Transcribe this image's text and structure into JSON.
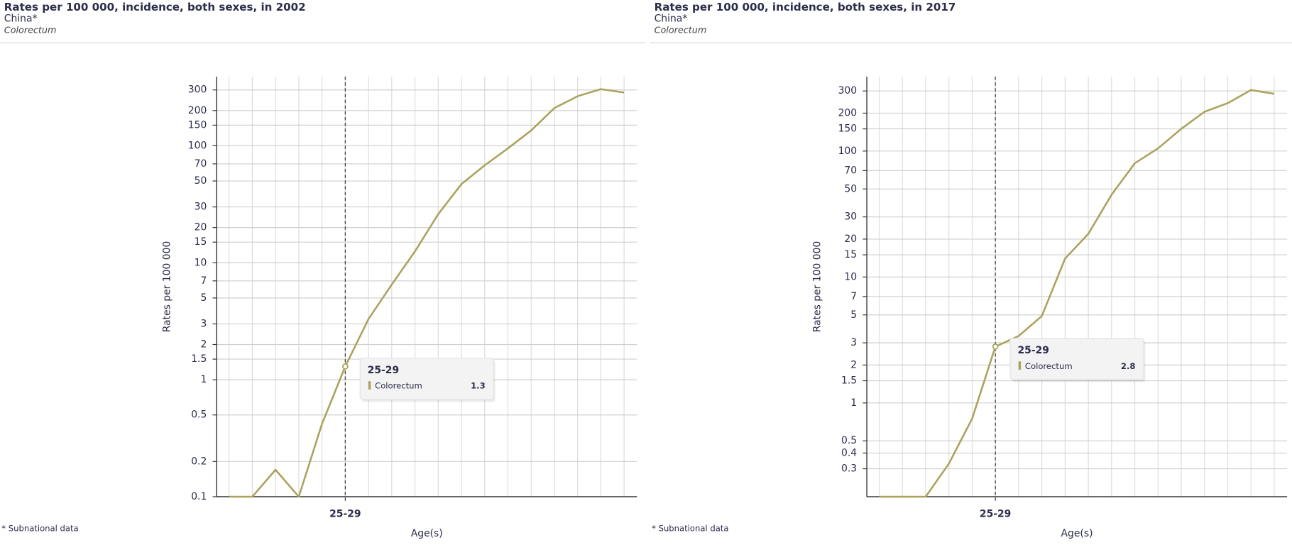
{
  "chart_data": [
    {
      "type": "line",
      "title": "Rates per 100 000, incidence, both sexes, in 2002",
      "subtitle": "China*",
      "cancer_site": "Colorectum",
      "note": "* Subnational data",
      "x_label": "Age(s)",
      "y_label": "Rates per 100 000",
      "categories": [
        null,
        null,
        null,
        null,
        null,
        "25-29",
        null,
        null,
        null,
        null,
        null,
        null,
        null,
        null,
        null,
        null,
        null,
        null
      ],
      "series": [
        {
          "name": "Colorectum",
          "color": "#a9a35c",
          "values": [
            0.1,
            0.1,
            0.17,
            0.1,
            0.42,
            1.3,
            3.3,
            6.5,
            12.5,
            26,
            47,
            68,
            95,
            135,
            210,
            265,
            305,
            285
          ]
        }
      ],
      "log_y": true,
      "grid": true,
      "ylim": [
        0.1,
        390
      ],
      "yticks": [
        0.1,
        0.2,
        0.5,
        1,
        1.5,
        2,
        3,
        5,
        7,
        10,
        15,
        20,
        30,
        50,
        70,
        100,
        150,
        200,
        300
      ]
    },
    {
      "type": "line",
      "title": "Rates per 100 000, incidence, both sexes, in 2017",
      "subtitle": "China*",
      "cancer_site": "Colorectum",
      "note": "* Subnational data",
      "x_label": "Age(s)",
      "y_label": "Rates per 100 000",
      "categories": [
        null,
        null,
        null,
        null,
        null,
        "25-29",
        null,
        null,
        null,
        null,
        null,
        null,
        null,
        null,
        null,
        null,
        null,
        null
      ],
      "series": [
        {
          "name": "Colorectum",
          "color": "#a9a35c",
          "values": [
            0.18,
            0.18,
            0.18,
            0.33,
            0.75,
            2.8,
            3.4,
            4.9,
            14,
            22,
            45,
            80,
            105,
            150,
            205,
            240,
            305,
            285
          ]
        }
      ],
      "log_y": true,
      "grid": true,
      "ylim": [
        0.18,
        390
      ],
      "yticks": [
        0.3,
        0.4,
        0.5,
        1,
        1.5,
        2,
        3,
        5,
        7,
        10,
        15,
        20,
        30,
        50,
        70,
        100,
        150,
        200,
        300
      ]
    }
  ]
}
